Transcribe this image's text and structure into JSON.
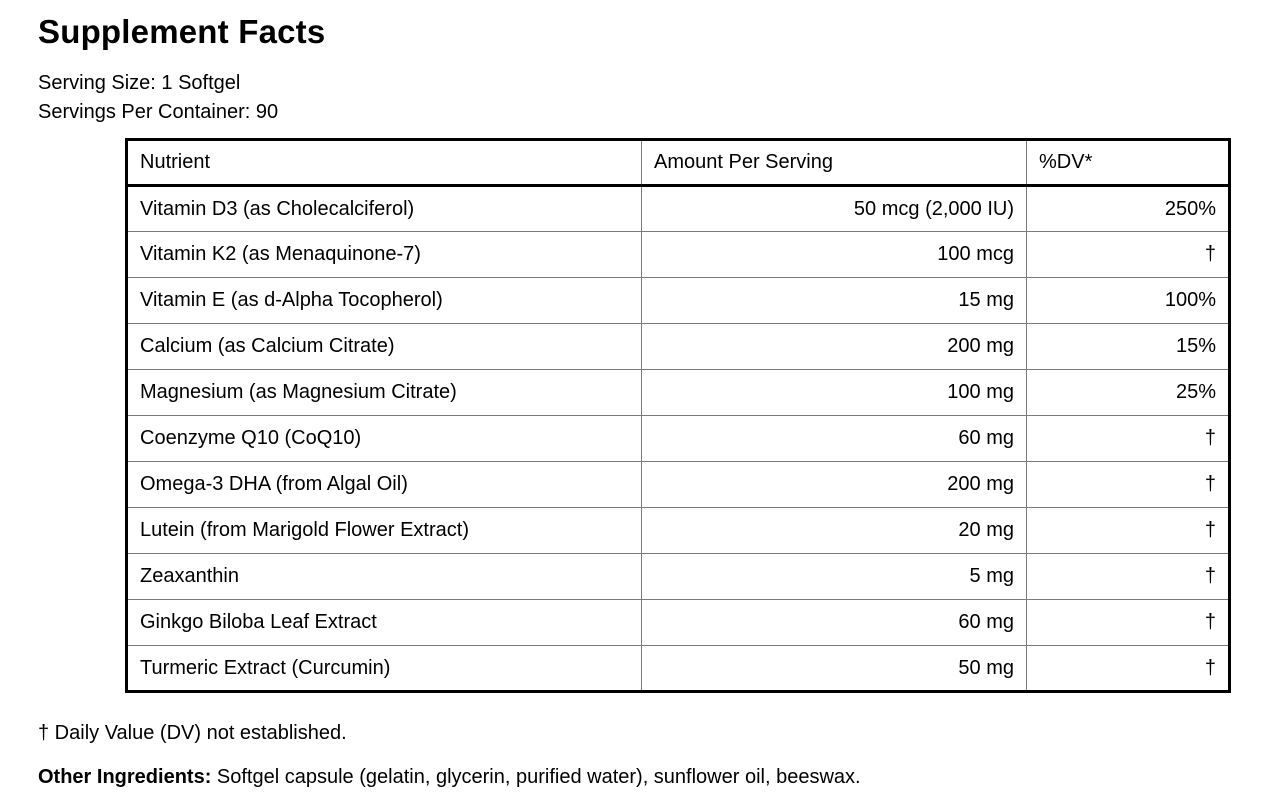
{
  "label": {
    "title": "Supplement Facts",
    "serving_size": "Serving Size: 1 Softgel",
    "servings_per_container": "Servings Per Container: 90"
  },
  "table": {
    "headers": [
      "Nutrient",
      "Amount Per Serving",
      "%DV*"
    ],
    "rows": [
      {
        "nutrient": "Vitamin D3 (as Cholecalciferol)",
        "amount": "50 mcg (2,000 IU)",
        "dv": "250%"
      },
      {
        "nutrient": "Vitamin K2 (as Menaquinone-7)",
        "amount": "100 mcg",
        "dv": "†"
      },
      {
        "nutrient": "Vitamin E (as d-Alpha Tocopherol)",
        "amount": "15 mg",
        "dv": "100%"
      },
      {
        "nutrient": "Calcium (as Calcium Citrate)",
        "amount": "200 mg",
        "dv": "15%"
      },
      {
        "nutrient": "Magnesium (as Magnesium Citrate)",
        "amount": "100 mg",
        "dv": "25%"
      },
      {
        "nutrient": "Coenzyme Q10 (CoQ10)",
        "amount": "60 mg",
        "dv": "†"
      },
      {
        "nutrient": "Omega-3 DHA (from Algal Oil)",
        "amount": "200 mg",
        "dv": "†"
      },
      {
        "nutrient": "Lutein (from Marigold Flower Extract)",
        "amount": "20 mg",
        "dv": "†"
      },
      {
        "nutrient": "Zeaxanthin",
        "amount": "5 mg",
        "dv": "†"
      },
      {
        "nutrient": "Ginkgo Biloba Leaf Extract",
        "amount": "60 mg",
        "dv": "†"
      },
      {
        "nutrient": "Turmeric Extract (Curcumin)",
        "amount": "50 mg",
        "dv": "†"
      }
    ]
  },
  "footnotes": {
    "dv_note": "† Daily Value (DV) not established.",
    "other_ingredients_label": "Other Ingredients:",
    "other_ingredients_text": " Softgel capsule (gelatin, glycerin, purified water), sunflower oil, beeswax."
  },
  "colors": {
    "text": "#000000",
    "background": "#ffffff",
    "outer_border": "#000000",
    "grid_line": "#7a7a7a"
  }
}
